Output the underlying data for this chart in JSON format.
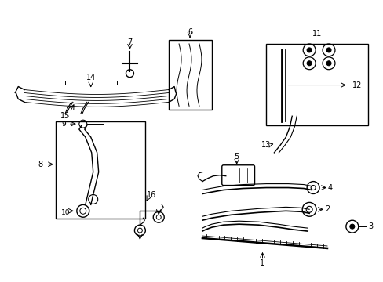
{
  "background_color": "#ffffff",
  "line_color": "#000000",
  "line_width": 1.0
}
